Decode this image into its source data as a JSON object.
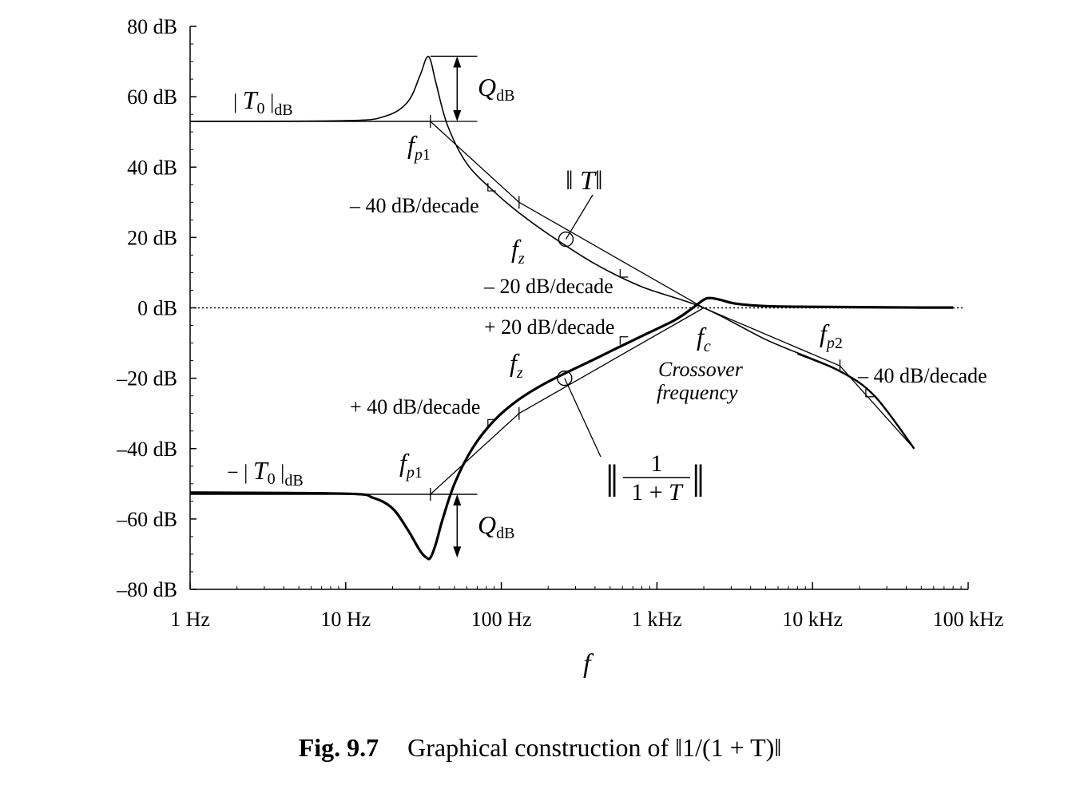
{
  "chart_data": {
    "type": "line",
    "title": "",
    "xlabel": "f",
    "ylabel": "",
    "x_scale": "log",
    "xlim": [
      1,
      100000
    ],
    "ylim": [
      -80,
      80
    ],
    "x_ticks": [
      {
        "value": 1,
        "label": "1 Hz"
      },
      {
        "value": 10,
        "label": "10 Hz"
      },
      {
        "value": 100,
        "label": "100 Hz"
      },
      {
        "value": 1000,
        "label": "1 kHz"
      },
      {
        "value": 10000,
        "label": "10 kHz"
      },
      {
        "value": 100000,
        "label": "100 kHz"
      }
    ],
    "y_ticks": [
      {
        "value": 80,
        "label": "80 dB"
      },
      {
        "value": 60,
        "label": "60 dB"
      },
      {
        "value": 40,
        "label": "40 dB"
      },
      {
        "value": 20,
        "label": "20 dB"
      },
      {
        "value": 0,
        "label": "0 dB"
      },
      {
        "value": -20,
        "label": "–20 dB"
      },
      {
        "value": -40,
        "label": "–40 dB"
      },
      {
        "value": -60,
        "label": "–60 dB"
      },
      {
        "value": -80,
        "label": "–80 dB"
      }
    ],
    "key_frequencies_hz": {
      "fp1": 35,
      "fz": 130,
      "fc": 2000,
      "fp2": 15000
    },
    "asymptotes": [
      {
        "x": [
          1,
          35,
          130,
          2000,
          15000,
          45000
        ],
        "y": [
          53,
          53,
          30,
          0,
          -16.5,
          -40
        ]
      },
      {
        "x": [
          1,
          35,
          130,
          2000
        ],
        "y": [
          -53,
          -53,
          -30,
          0
        ]
      }
    ],
    "series": [
      {
        "x": [
          1,
          10,
          18,
          25,
          30,
          33,
          35,
          38,
          45,
          60,
          90,
          130,
          200,
          400,
          800,
          2000,
          5000,
          10000,
          15000,
          25000,
          45000
        ],
        "y": [
          53,
          53.2,
          54.5,
          58.5,
          66,
          71,
          70.5,
          64,
          52,
          41,
          33,
          27,
          21,
          12.5,
          6,
          0,
          -9,
          -14.5,
          -18,
          -25,
          -40
        ]
      },
      {
        "x": [
          1,
          10,
          15,
          20,
          25,
          30,
          33,
          35,
          38,
          42,
          50,
          65,
          90,
          130,
          200,
          400,
          800,
          1300,
          1700,
          2000,
          2200,
          2600,
          3200,
          5000,
          10000,
          20000,
          50000,
          80000
        ],
        "y": [
          -52.5,
          -52.8,
          -54,
          -57,
          -63,
          -69,
          -71,
          -71,
          -67,
          -60,
          -50,
          -40,
          -32,
          -26,
          -21,
          -14.5,
          -8,
          -3.5,
          0,
          2.3,
          2.8,
          2.2,
          1.2,
          0.5,
          0.3,
          0.2,
          0.1,
          0.1
        ]
      }
    ],
    "grid": false,
    "reference_line": {
      "y": 0,
      "style": "dotted"
    }
  },
  "annotations": {
    "t0_top": "| T₀ |dB",
    "t0_bottom": "− | T₀ |dB",
    "qdb": "QdB",
    "fp1": "fp1",
    "fz": "fz",
    "fc": "fc",
    "fp2": "fp2",
    "minus40": "– 40 dB/decade",
    "minus20": "– 20 dB/decade",
    "plus20": "+ 20 dB/decade",
    "plus40": "+ 40 dB/decade",
    "minus40_right": "– 40 dB/decade",
    "crossover_line1": "Crossover",
    "crossover_line2": "frequency",
    "t_label": "‖ T‖",
    "inv_label_num": "1",
    "inv_label_den": "1 + T"
  },
  "caption": {
    "number": "Fig. 9.7",
    "text": "Graphical construction of ‖1/(1 + T)‖"
  }
}
